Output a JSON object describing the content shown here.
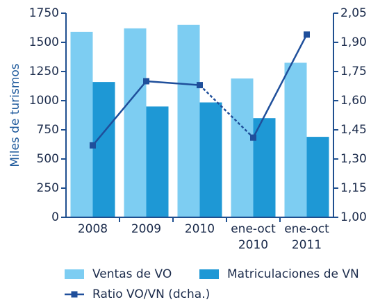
{
  "chart_data": {
    "type": "bar_line",
    "y_label": "Miles de turismos",
    "categories": [
      "2008",
      "2009",
      "2010",
      "ene-oct 2010",
      "ene-oct 2011"
    ],
    "series": [
      {
        "name": "Ventas de VO",
        "type": "bar",
        "color": "#7dcdf2",
        "values": [
          1590,
          1620,
          1650,
          1190,
          1325
        ]
      },
      {
        "name": "Matriculaciones de VN",
        "type": "bar",
        "color": "#1e98d5",
        "values": [
          1160,
          950,
          985,
          850,
          690
        ]
      },
      {
        "name": "Ratio VO/VN (dcha.)",
        "type": "line",
        "axis": "y2",
        "color": "#1f4f9b",
        "values": [
          1.37,
          1.7,
          1.68,
          1.41,
          1.94
        ],
        "dashed_segments": [
          [
            2,
            3
          ]
        ]
      }
    ],
    "ylim": [
      0,
      1750
    ],
    "yticks": [
      0,
      250,
      500,
      750,
      1000,
      1250,
      1500,
      1750
    ],
    "y2lim": [
      1.0,
      2.05
    ],
    "y2ticks": [
      {
        "value": 1.0,
        "label": "1,00"
      },
      {
        "value": 1.15,
        "label": "1,15"
      },
      {
        "value": 1.3,
        "label": "1,30"
      },
      {
        "value": 1.45,
        "label": "1,45"
      },
      {
        "value": 1.6,
        "label": "1,60"
      },
      {
        "value": 1.75,
        "label": "1,75"
      },
      {
        "value": 1.9,
        "label": "1,90"
      },
      {
        "value": 2.05,
        "label": "2,05"
      }
    ],
    "axis_color": "#1f4f8f"
  }
}
